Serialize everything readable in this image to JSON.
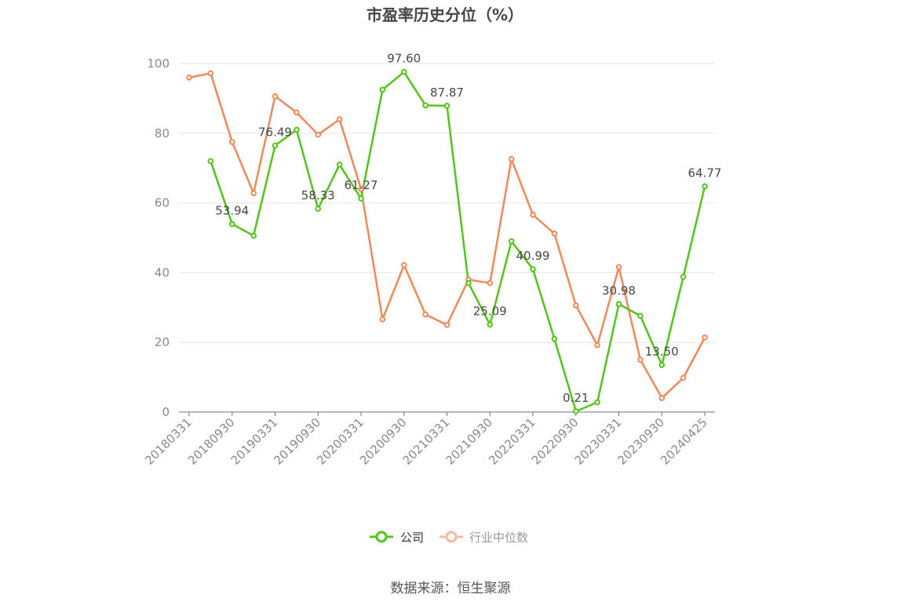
{
  "chart_data": {
    "type": "line",
    "title": "市盈率历史分位（%）",
    "ylim": [
      0,
      100
    ],
    "y_ticks": [
      0,
      20,
      40,
      60,
      80,
      100
    ],
    "x_tick_labels": [
      "20180331",
      "20180930",
      "20190331",
      "20190930",
      "20200331",
      "20200930",
      "20210331",
      "20210930",
      "20220331",
      "20220930",
      "20230331",
      "20230930",
      "20240425"
    ],
    "grid": true,
    "legend_position": "bottom-center",
    "series": [
      {
        "name": "公司",
        "color": "#52c41a",
        "values": [
          null,
          72.0,
          53.94,
          50.6,
          76.49,
          81.0,
          58.33,
          71.0,
          61.27,
          92.5,
          97.6,
          88.0,
          87.87,
          37.0,
          25.09,
          49.0,
          40.99,
          21.0,
          0.21,
          2.8,
          30.98,
          27.6,
          13.5,
          38.8,
          64.77
        ]
      },
      {
        "name": "行业中位数",
        "color": "#f0895a",
        "values": [
          96.0,
          97.2,
          77.5,
          62.8,
          90.6,
          86.0,
          79.6,
          84.0,
          64.0,
          26.6,
          42.2,
          28.0,
          25.0,
          38.0,
          37.0,
          72.6,
          56.6,
          51.2,
          30.6,
          19.2,
          41.6,
          15.0,
          4.0,
          9.8,
          21.4
        ]
      }
    ],
    "data_labels": [
      {
        "series": 0,
        "index": 2,
        "text": "53.94"
      },
      {
        "series": 0,
        "index": 4,
        "text": "76.49"
      },
      {
        "series": 0,
        "index": 6,
        "text": "58.33"
      },
      {
        "series": 0,
        "index": 8,
        "text": "61.27"
      },
      {
        "series": 0,
        "index": 10,
        "text": "97.60"
      },
      {
        "series": 0,
        "index": 12,
        "text": "87.87"
      },
      {
        "series": 0,
        "index": 14,
        "text": "25.09"
      },
      {
        "series": 0,
        "index": 16,
        "text": "40.99"
      },
      {
        "series": 0,
        "index": 18,
        "text": "0.21"
      },
      {
        "series": 0,
        "index": 20,
        "text": "30.98"
      },
      {
        "series": 0,
        "index": 22,
        "text": "13.50"
      },
      {
        "series": 0,
        "index": 24,
        "text": "64.77"
      }
    ]
  },
  "legend": [
    {
      "label": "公司",
      "color": "#52c41a"
    },
    {
      "label": "行业中位数",
      "color": "#f7b9a0"
    }
  ],
  "source": "数据来源：恒生聚源"
}
